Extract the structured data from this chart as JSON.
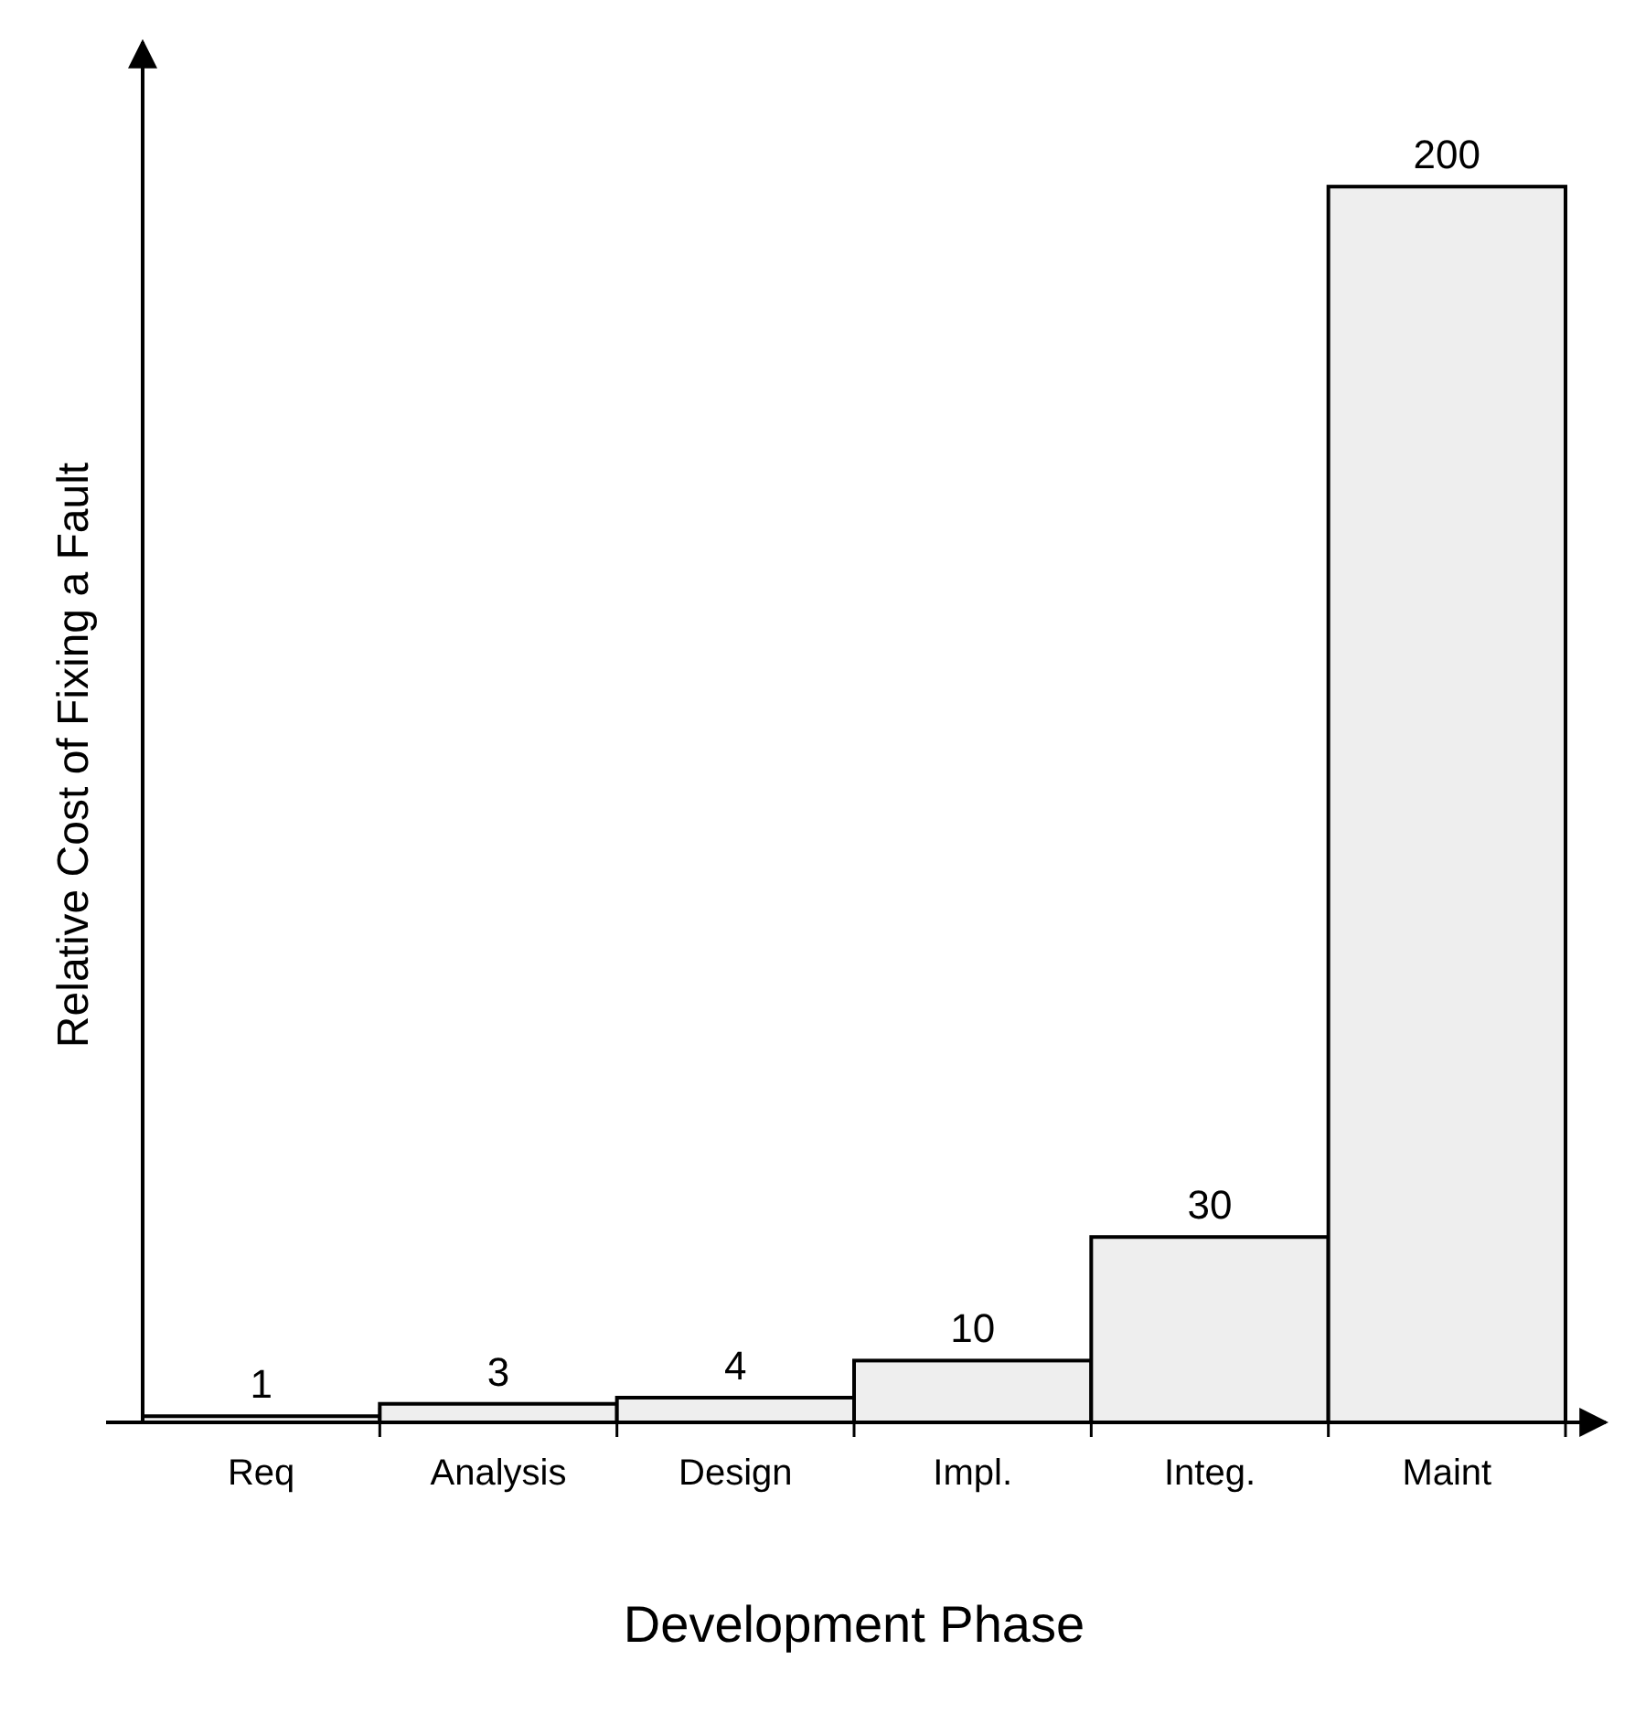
{
  "chart_data": {
    "type": "bar",
    "xlabel": "Development Phase",
    "ylabel": "Relative Cost of Fixing a Fault",
    "categories": [
      "Req",
      "Analysis",
      "Design",
      "Impl.",
      "Integ.",
      "Maint"
    ],
    "values": [
      1,
      3,
      4,
      10,
      30,
      200
    ],
    "color": "#eeeeee",
    "data_labels": true
  }
}
